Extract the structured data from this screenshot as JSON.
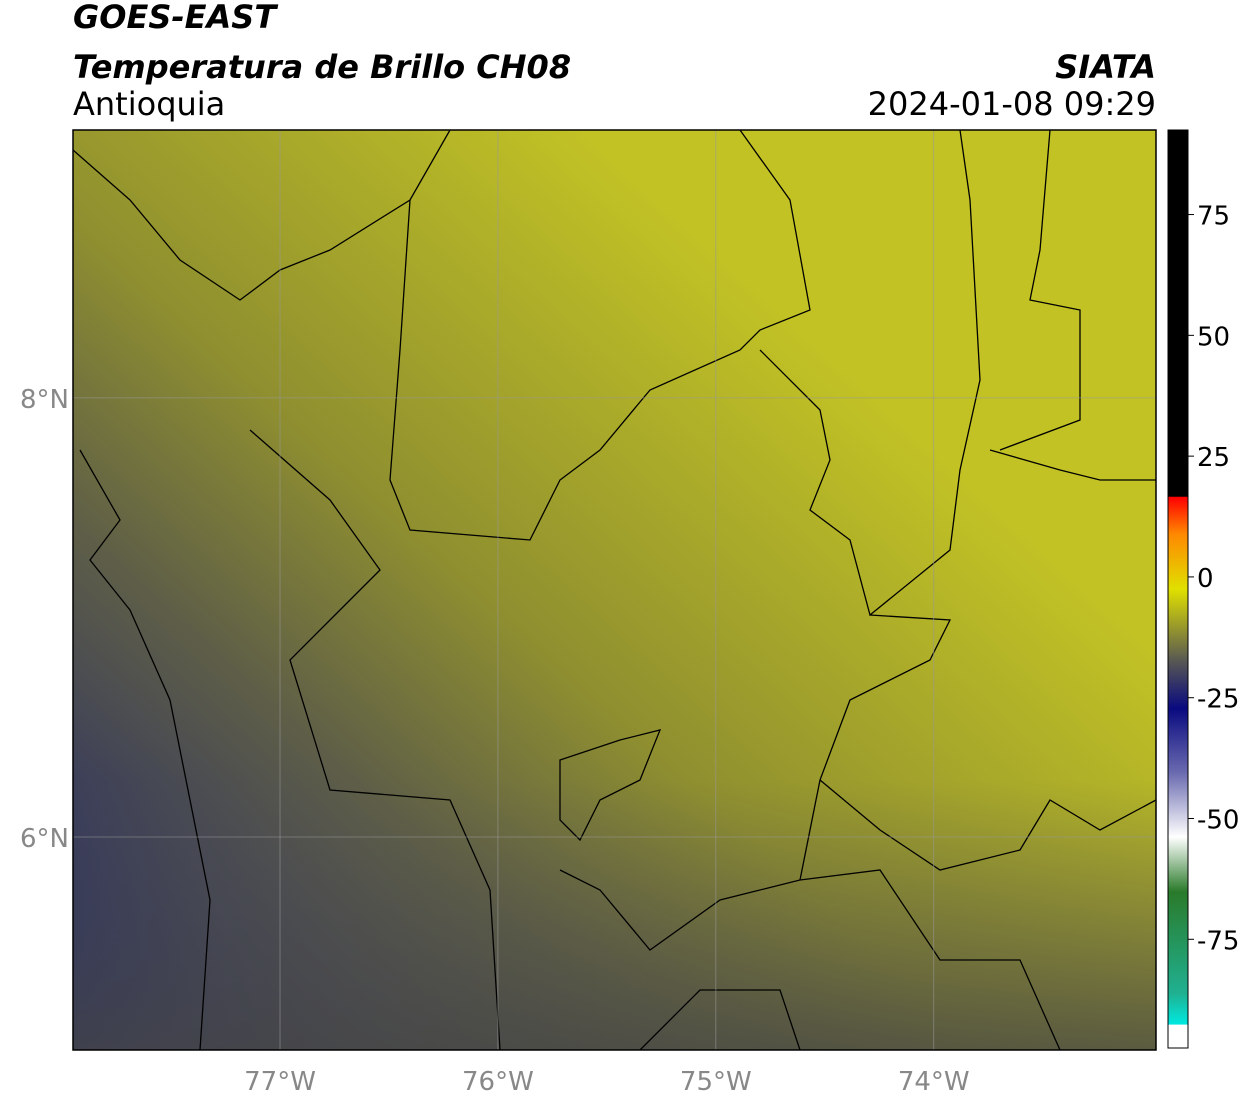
{
  "header": {
    "satellite": "GOES-EAST",
    "product": "Temperatura de Brillo CH08",
    "region": "Antioquia",
    "source": "SIATA",
    "datetime": "2024-01-08 09:29"
  },
  "map": {
    "xlim": [
      -77.95,
      -72.98
    ],
    "ylim": [
      5.03,
      9.22
    ],
    "xticks": [
      {
        "value": -77,
        "label": "77°W"
      },
      {
        "value": -76,
        "label": "76°W"
      },
      {
        "value": -75,
        "label": "75°W"
      },
      {
        "value": -74,
        "label": "74°W"
      }
    ],
    "yticks": [
      {
        "value": 6,
        "label": "6°N"
      },
      {
        "value": 8,
        "label": "8°N"
      }
    ],
    "grid": true
  },
  "colorbar": {
    "lim": [
      -97.5,
      92.5
    ],
    "ticks": [
      75,
      50,
      25,
      0,
      -25,
      -50,
      -75
    ]
  }
}
